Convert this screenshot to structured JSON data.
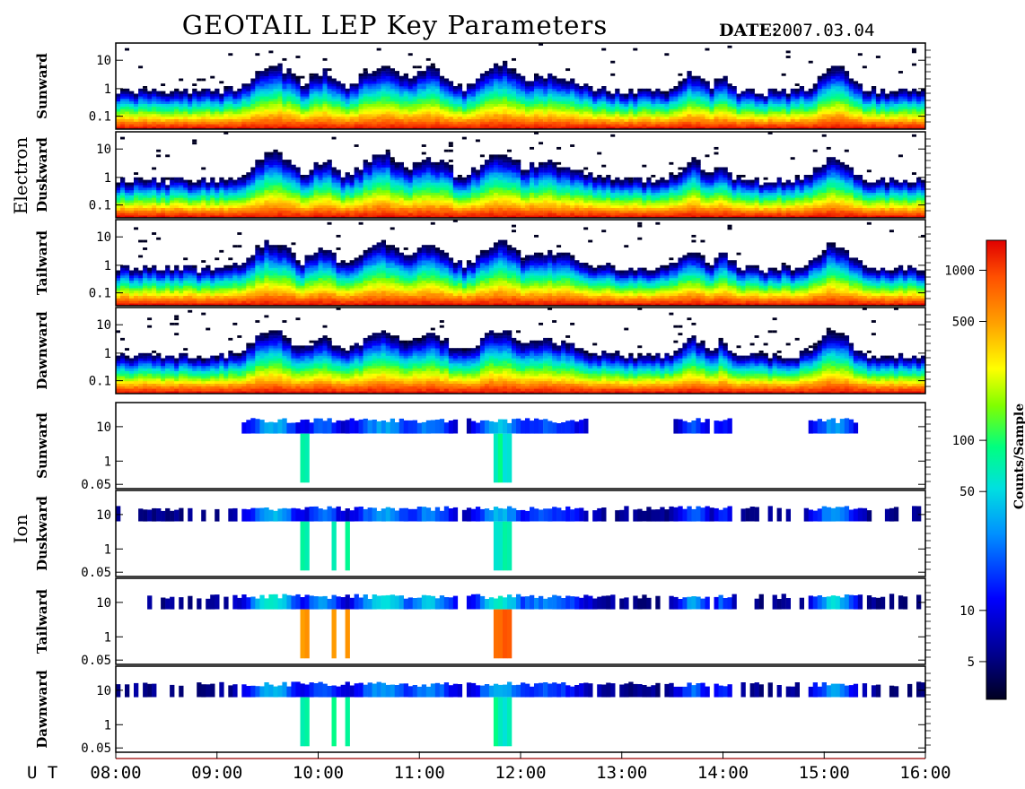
{
  "title": "GEOTAIL LEP Key Parameters",
  "date_label": "DATE:",
  "date_value": "2007.03.04",
  "x_axis_label": "U T",
  "colors": {
    "colormap": [
      "#000020",
      "#000080",
      "#0000ff",
      "#0080ff",
      "#00e0e0",
      "#00ff80",
      "#80ff00",
      "#ffff00",
      "#ffa000",
      "#ff5000",
      "#e00000"
    ]
  },
  "chart_data": {
    "type": "heatmap",
    "title": "GEOTAIL LEP Key Parameters",
    "x_ticks": [
      "08:00",
      "09:00",
      "10:00",
      "11:00",
      "12:00",
      "13:00",
      "14:00",
      "15:00",
      "16:00"
    ],
    "x_range": [
      "08:00",
      "16:00"
    ],
    "groups": [
      {
        "name": "Electron",
        "panels": [
          {
            "label": "Sunward",
            "y_ticks": [
              "10",
              "1",
              "0.1"
            ]
          },
          {
            "label": "Duskward",
            "y_ticks": [
              "10",
              "1",
              "0.1"
            ]
          },
          {
            "label": "Tailward",
            "y_ticks": [
              "10",
              "1",
              "0.1"
            ]
          },
          {
            "label": "Dawnward",
            "y_ticks": [
              "10",
              "1",
              "0.1"
            ]
          }
        ]
      },
      {
        "name": "Ion",
        "panels": [
          {
            "label": "Sunward",
            "y_ticks": [
              "10",
              "1",
              "0.05"
            ]
          },
          {
            "label": "Duskward",
            "y_ticks": [
              "10",
              "1",
              "0.05"
            ]
          },
          {
            "label": "Tailward",
            "y_ticks": [
              "10",
              "1",
              "0.05"
            ]
          },
          {
            "label": "Dawnward",
            "y_ticks": [
              "10",
              "1",
              "0.05"
            ]
          }
        ]
      }
    ],
    "colorbar": {
      "label": "Counts/Sample",
      "scale": "log",
      "range": [
        3,
        1500
      ],
      "ticks": [
        "1000",
        "500",
        "100",
        "50",
        "10",
        "5"
      ]
    }
  }
}
